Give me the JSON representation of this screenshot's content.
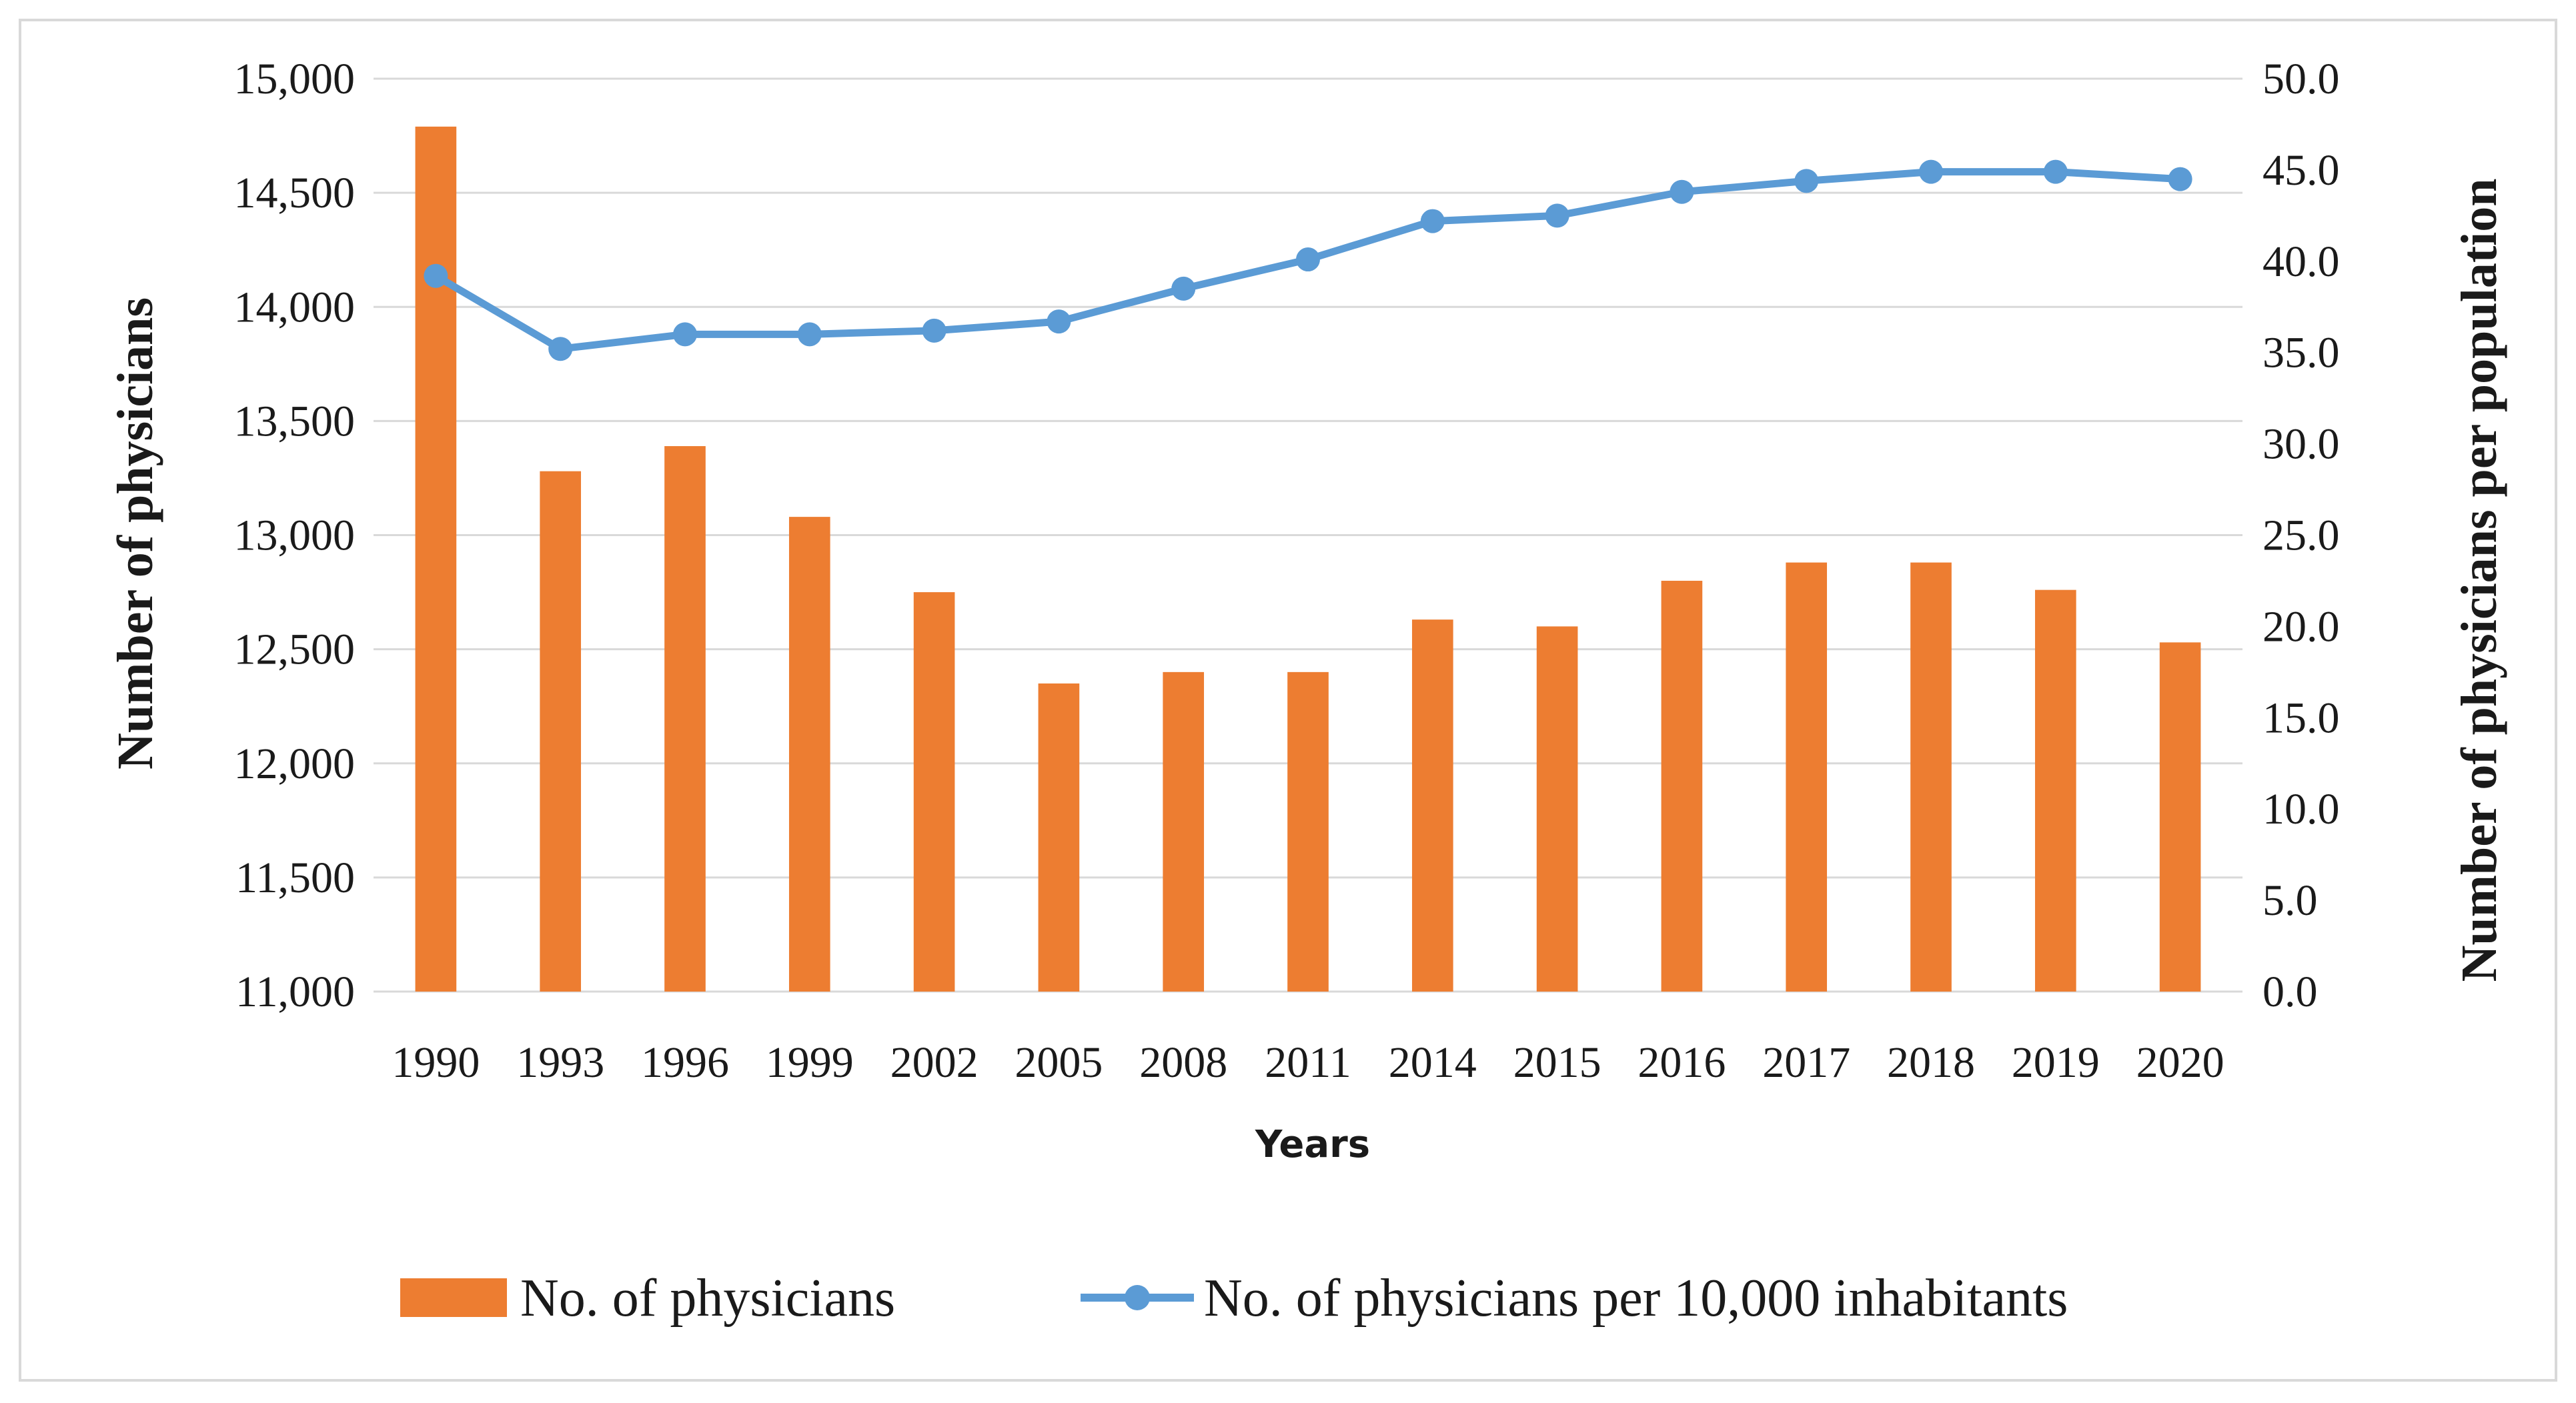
{
  "chart_data": {
    "type": "bar+line",
    "xlabel": "Years",
    "categories": [
      "1990",
      "1993",
      "1996",
      "1999",
      "2002",
      "2005",
      "2008",
      "2011",
      "2014",
      "2015",
      "2016",
      "2017",
      "2018",
      "2019",
      "2020"
    ],
    "y_left": {
      "label": "Number of physicians",
      "range": [
        11000,
        15000
      ],
      "ticks": [
        11000,
        11500,
        12000,
        12500,
        13000,
        13500,
        14000,
        14500,
        15000
      ],
      "tick_labels": [
        "11,000",
        "11,500",
        "12,000",
        "12,500",
        "13,000",
        "13,500",
        "14,000",
        "14,500",
        "15,000"
      ]
    },
    "y_right": {
      "label": "Number of physicians per population",
      "range": [
        0,
        50
      ],
      "ticks": [
        0,
        5,
        10,
        15,
        20,
        25,
        30,
        35,
        40,
        45,
        50
      ],
      "tick_labels": [
        "0.0",
        "5.0",
        "10.0",
        "15.0",
        "20.0",
        "25.0",
        "30.0",
        "35.0",
        "40.0",
        "45.0",
        "50.0"
      ]
    },
    "series": [
      {
        "name": "No. of physicians",
        "kind": "bar",
        "axis": "left",
        "color": "#ED7D31",
        "values": [
          14790,
          13280,
          13390,
          13080,
          12750,
          12350,
          12400,
          12400,
          12630,
          12600,
          12800,
          12880,
          12880,
          12760,
          12530
        ]
      },
      {
        "name": "No. of physicians per 10,000 inhabitants",
        "kind": "line",
        "axis": "right",
        "color": "#5B9BD5",
        "values": [
          39.2,
          35.2,
          36.0,
          36.0,
          36.2,
          36.7,
          38.5,
          40.1,
          42.2,
          42.5,
          43.8,
          44.4,
          44.9,
          44.9,
          44.5
        ]
      }
    ],
    "grid": true,
    "legend_position": "bottom"
  }
}
